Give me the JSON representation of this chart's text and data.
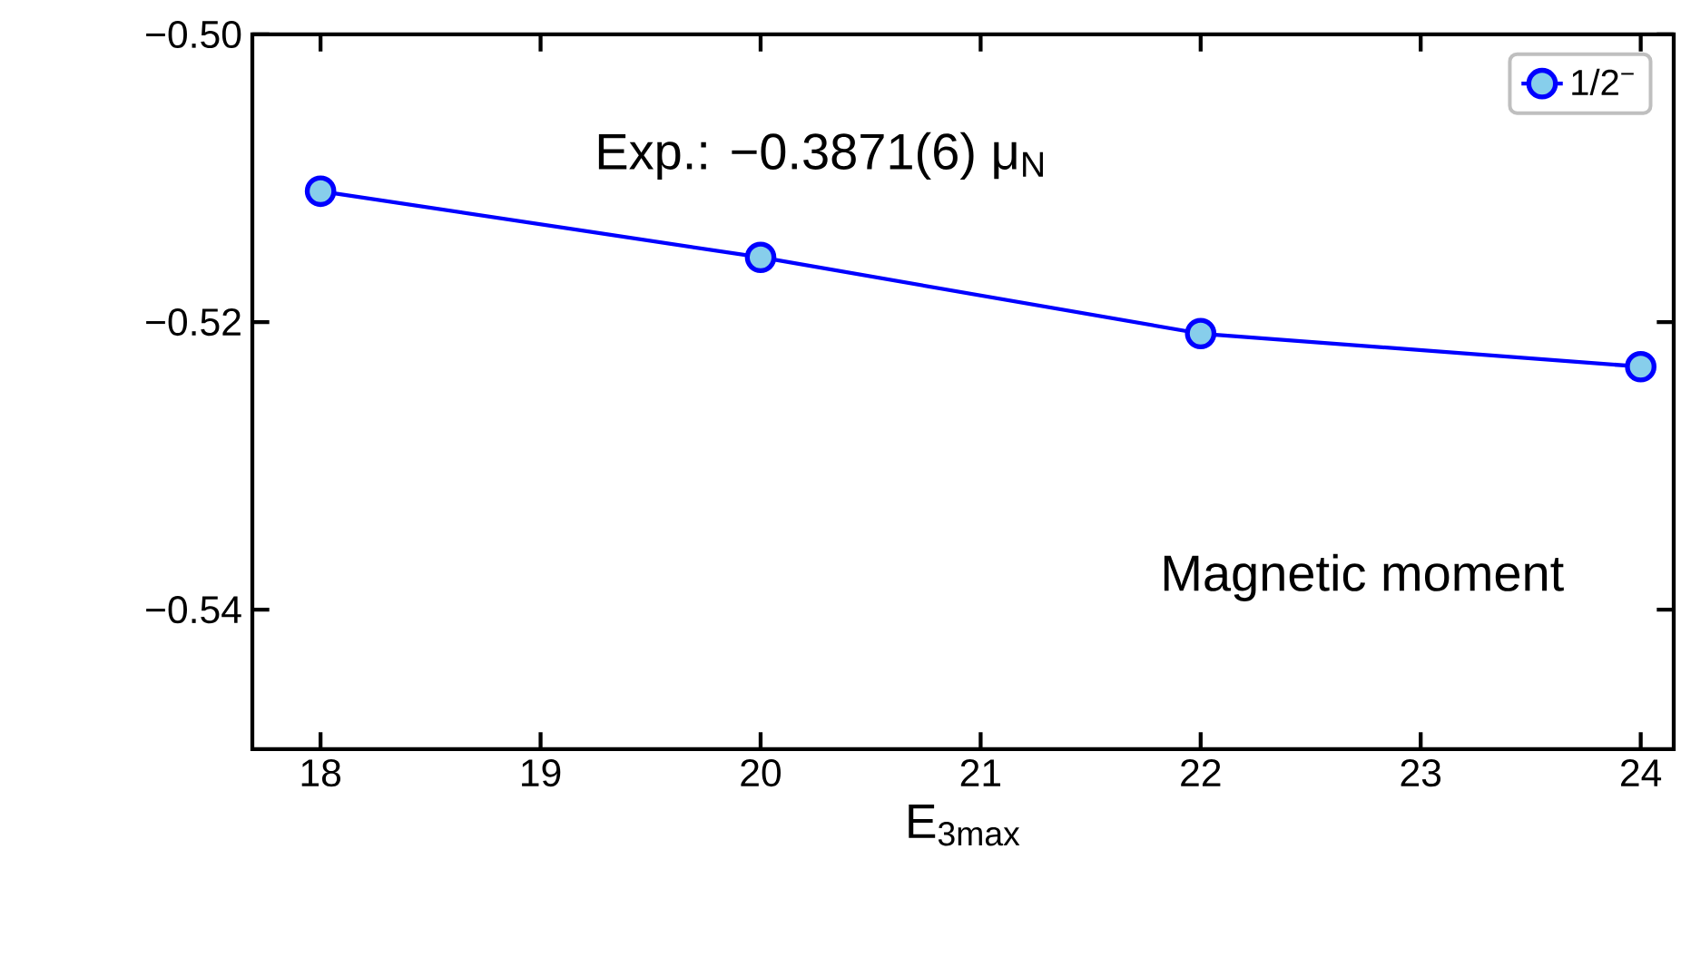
{
  "chart_data": {
    "type": "line",
    "xlabel": "E$_{3max}$",
    "x": [
      18,
      20,
      22,
      24
    ],
    "series": [
      {
        "name": "1/2$^{−}$",
        "color": "#0000ff",
        "values": [
          -0.5109,
          -0.5155,
          -0.5208,
          -0.5231
        ]
      }
    ],
    "xlim": [
      17.69,
      24.15
    ],
    "ylim": [
      -0.5497,
      -0.5
    ],
    "xticks": [
      18,
      19,
      20,
      21,
      22,
      23,
      24
    ],
    "yticks": [
      {
        "value": -0.5,
        "label": "−0.50"
      },
      {
        "value": -0.52,
        "label": "−0.52"
      },
      {
        "value": -0.54,
        "label": "−0.54"
      }
    ],
    "annotations": [
      "Exp.: −0.3871(6) μ$_{N}$",
      "Magnetic moment"
    ],
    "legend": "top right",
    "marker": "circle",
    "line_style": "solid"
  }
}
